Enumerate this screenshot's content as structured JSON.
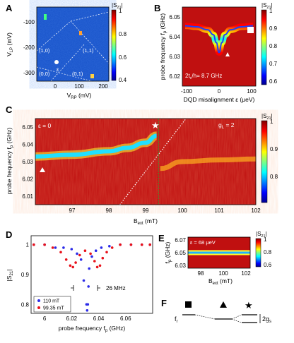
{
  "colors": {
    "jet": [
      "#00008f",
      "#0000ff",
      "#0080ff",
      "#00ffff",
      "#80ff80",
      "#ffff00",
      "#ff8000",
      "#ff0000",
      "#800000"
    ],
    "bg_low": "#1550c8",
    "bg_high": "#c01010",
    "red_series": "#e8111a",
    "blue_series": "#2b2be8"
  },
  "panels": {
    "A": {
      "label": "A",
      "ylabel": "V",
      "ylabel_sub": "LP",
      "ylabel_unit": " (mV)",
      "xlabel": "V",
      "xlabel_sub": "RP",
      "xlabel_unit": " (mV)",
      "xticks": [
        "0",
        "100",
        "200"
      ],
      "yticks": [
        "-100",
        "-200",
        "-300"
      ],
      "regions": [
        "(1,0)",
        "(1,1)",
        "(0,0)",
        "(0,1)"
      ],
      "epsilon": "ε",
      "colorbar_title": "|S",
      "colorbar_sub": "21",
      "colorbar_title_end": "|",
      "colorbar_ticks": [
        "1",
        "0.8",
        "0.6",
        "0.4"
      ]
    },
    "B": {
      "label": "B",
      "ylabel": "probe frequency f",
      "ylabel_sub": "p",
      "ylabel_unit": " (GHz)",
      "xlabel": "DQD misalignment ε (μeV)",
      "xticks": [
        "-100",
        "0",
        "100"
      ],
      "yticks": [
        "6.05",
        "6.04",
        "6.03",
        "6.02"
      ],
      "annotation": "2t",
      "annotation_sub": "c",
      "annotation_end": "/h= 8.7 GHz",
      "colorbar_title": "|S",
      "colorbar_sub": "21",
      "colorbar_title_end": "|",
      "colorbar_ticks": [
        "1",
        "0.9",
        "0.8",
        "0.7",
        "0.6"
      ]
    },
    "C": {
      "label": "C",
      "ylabel": "probe frequency f",
      "ylabel_sub": "p",
      "ylabel_unit": " (GHz)",
      "xlabel": "B",
      "xlabel_sub": "ext",
      "xlabel_unit": " (mT)",
      "xticks": [
        "97",
        "98",
        "99",
        "100",
        "101",
        "102"
      ],
      "yticks": [
        "6.05",
        "6.04",
        "6.03",
        "6.02",
        "6.01"
      ],
      "epsilon_label": "ε = 0",
      "g_label": "g",
      "g_sub": "L",
      "g_end": " = 2",
      "colorbar_title": "|S",
      "colorbar_sub": "21",
      "colorbar_title_end": "|",
      "colorbar_ticks": [
        "1",
        "0.9",
        "0.8"
      ]
    },
    "D": {
      "label": "D",
      "ylabel": "|S",
      "ylabel_sub": "21",
      "ylabel_end": "|",
      "xlabel": "probe frequency f",
      "xlabel_sub": "p",
      "xlabel_unit": " (GHz)",
      "xticks": [
        "6",
        "6.02",
        "6.04",
        "6.06"
      ],
      "yticks": [
        "1",
        "0.9",
        "0.8"
      ],
      "legend": [
        "110 mT",
        "99.35 mT"
      ],
      "annotation": "26 MHz"
    },
    "E": {
      "label": "E",
      "ylabel": "f",
      "ylabel_sub": "p",
      "ylabel_unit": " (GHz)",
      "xlabel": "B",
      "xlabel_sub": "ext",
      "xlabel_unit": " (mT)",
      "xticks": [
        "98",
        "100",
        "102"
      ],
      "yticks": [
        "6.07",
        "6.05",
        "6.03"
      ],
      "epsilon_label": "ε = 68 μeV",
      "colorbar_title": "|S",
      "colorbar_sub": "21",
      "colorbar_title_end": "|",
      "colorbar_ticks": [
        "1",
        "0.8",
        "0.6"
      ]
    },
    "F": {
      "label": "F",
      "fr": "f",
      "fr_sub": "r",
      "g_label": "2g",
      "g_sub": "s"
    }
  },
  "chart_data": [
    {
      "panel": "B",
      "type": "heatmap",
      "xlabel": "DQD misalignment ε (μeV)",
      "ylabel": "probe frequency fp (GHz)",
      "xlim": [
        -130,
        130
      ],
      "ylim": [
        6.015,
        6.055
      ],
      "resonance_curve": {
        "x": [
          -120,
          -80,
          -40,
          -20,
          -10,
          0,
          10,
          20,
          40,
          80,
          120
        ],
        "y": [
          6.0455,
          6.045,
          6.0435,
          6.041,
          6.037,
          6.032,
          6.037,
          6.041,
          6.0435,
          6.045,
          6.0455
        ]
      }
    },
    {
      "panel": "C",
      "type": "heatmap",
      "xlabel": "Bext (mT)",
      "ylabel": "probe frequency fp (GHz)",
      "xlim": [
        96,
        102
      ],
      "ylim": [
        6.005,
        6.055
      ],
      "lower_branch": {
        "x": [
          96,
          97,
          98,
          98.5,
          99,
          99.3
        ],
        "y": [
          6.033,
          6.034,
          6.036,
          6.038,
          6.041,
          6.045
        ]
      },
      "upper_branch": {
        "x": [
          99.4,
          100,
          101,
          102
        ],
        "y": [
          6.026,
          6.03,
          6.031,
          6.0315
        ]
      },
      "gL2_line": {
        "x": [
          98.3,
          100.1
        ],
        "y": [
          6.005,
          6.055
        ]
      },
      "vertical_marker": 99.35
    },
    {
      "panel": "D",
      "type": "scatter",
      "xlabel": "probe frequency fp (GHz)",
      "ylabel": "|S21|",
      "xlim": [
        5.99,
        6.08
      ],
      "ylim": [
        0.77,
        1.03
      ],
      "series": [
        {
          "name": "110 mT",
          "x": [
            5.992,
            6.0,
            6.008,
            6.014,
            6.02,
            6.024,
            6.027,
            6.029,
            6.031,
            6.0315,
            6.032,
            6.0325,
            6.033,
            6.035,
            6.038,
            6.042,
            6.048,
            6.056,
            6.064,
            6.072,
            6.078
          ],
          "values": [
            1.0,
            1.0,
            0.99,
            0.99,
            0.985,
            0.97,
            0.95,
            0.88,
            0.8,
            0.78,
            0.8,
            0.86,
            0.92,
            0.96,
            0.98,
            0.99,
            0.995,
            1.0,
            1.0,
            1.0,
            1.0
          ]
        },
        {
          "name": "99.35 mT",
          "x": [
            5.992,
            6.0,
            6.006,
            6.012,
            6.016,
            6.019,
            6.021,
            6.023,
            6.026,
            6.03,
            6.034,
            6.037,
            6.039,
            6.041,
            6.043,
            6.046,
            6.05,
            6.056,
            6.064,
            6.072,
            6.078
          ],
          "values": [
            1.0,
            1.0,
            0.99,
            0.975,
            0.95,
            0.93,
            0.925,
            0.94,
            0.965,
            0.98,
            0.97,
            0.945,
            0.925,
            0.93,
            0.955,
            0.975,
            0.99,
            1.0,
            1.0,
            1.0,
            1.0
          ]
        }
      ]
    },
    {
      "panel": "E",
      "type": "heatmap",
      "xlabel": "Bext (mT)",
      "ylabel": "fp (GHz)",
      "xlim": [
        96.5,
        102
      ],
      "ylim": [
        6.025,
        6.075
      ],
      "resonance_line": 6.05
    }
  ]
}
